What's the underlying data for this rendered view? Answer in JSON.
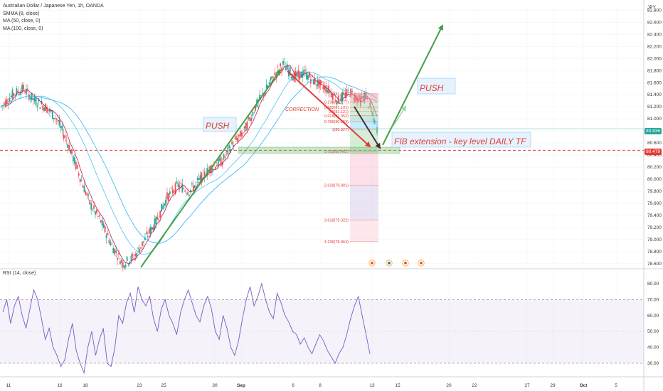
{
  "chart_data": [
    {
      "type": "candlestick",
      "title": "Australian Dollar / Japanese Yen, 1h, OANDA",
      "indicators": [
        "SMMA (8, close)",
        "MA (50, close, 0)",
        "MA (100, close, 0)"
      ],
      "currency": "JPY",
      "y_ticks": [
        "82.800",
        "82.600",
        "82.400",
        "82.200",
        "82.000",
        "81.800",
        "81.600",
        "81.400",
        "81.200",
        "81.000",
        "80.800",
        "80.600",
        "80.400",
        "80.200",
        "80.000",
        "79.800",
        "79.600",
        "79.400",
        "79.200",
        "79.000",
        "78.800",
        "78.600"
      ],
      "x_ticks": [
        "11",
        "16",
        "18",
        "23",
        "25",
        "30",
        "Sep",
        "6",
        "8",
        "13",
        "15",
        "20",
        "22",
        "27",
        "29",
        "Oct",
        "5"
      ],
      "current_price": "80.836",
      "level_price": "80.479",
      "ylim": [
        78.55,
        82.9
      ],
      "price_path": [
        [
          0,
          81.2
        ],
        [
          4,
          81.4
        ],
        [
          8,
          81.5
        ],
        [
          12,
          81.3
        ],
        [
          16,
          81.2
        ],
        [
          20,
          81.0
        ],
        [
          24,
          80.6
        ],
        [
          28,
          80.1
        ],
        [
          32,
          79.6
        ],
        [
          36,
          79.3
        ],
        [
          40,
          78.9
        ],
        [
          44,
          78.6
        ],
        [
          48,
          78.7
        ],
        [
          52,
          79.0
        ],
        [
          56,
          79.3
        ],
        [
          60,
          79.7
        ],
        [
          64,
          79.9
        ],
        [
          68,
          79.8
        ],
        [
          72,
          80.0
        ],
        [
          76,
          80.2
        ],
        [
          80,
          80.3
        ],
        [
          84,
          80.6
        ],
        [
          88,
          80.8
        ],
        [
          92,
          81.2
        ],
        [
          96,
          81.5
        ],
        [
          100,
          81.8
        ],
        [
          102,
          81.9
        ],
        [
          106,
          81.7
        ],
        [
          110,
          81.75
        ],
        [
          114,
          81.6
        ],
        [
          118,
          81.5
        ],
        [
          122,
          81.3
        ],
        [
          126,
          81.45
        ],
        [
          130,
          81.3
        ],
        [
          132,
          81.4
        ],
        [
          134,
          81.1
        ],
        [
          136,
          80.84
        ]
      ],
      "fib_levels": [
        {
          "label": "0(81.416)",
          "value": 81.416
        },
        {
          "label": "0.236(81.277)",
          "value": 81.277
        },
        {
          "label": "0.382(81.191)",
          "value": 81.191
        },
        {
          "label": "0.5(81.121)",
          "value": 81.121
        },
        {
          "label": "0.618(81.052)",
          "value": 81.052
        },
        {
          "label": "0.786(80.953)",
          "value": 80.953
        },
        {
          "label": "1(80.827)",
          "value": 80.827
        },
        {
          "label": "1.618(80.462)",
          "value": 80.462
        },
        {
          "label": "2.618(79.901)",
          "value": 79.901
        },
        {
          "label": "3.618(79.322)",
          "value": 79.322
        },
        {
          "label": "4.236(78.964)",
          "value": 78.964
        }
      ],
      "annotations": [
        "PUSH",
        "PUSH",
        "CORRECTION",
        "FIB extension - key level DAILY TF"
      ]
    },
    {
      "type": "line",
      "title": "RSI (14, close)",
      "y_ticks": [
        "80.00",
        "70.00",
        "60.00",
        "50.00",
        "40.00",
        "30.00"
      ],
      "ylim": [
        26,
        84
      ],
      "bands": [
        30,
        70
      ],
      "values": [
        62,
        70,
        55,
        66,
        72,
        60,
        52,
        64,
        76,
        70,
        58,
        45,
        52,
        40,
        35,
        28,
        32,
        45,
        55,
        38,
        30,
        24,
        40,
        50,
        35,
        45,
        52,
        30,
        28,
        40,
        60,
        55,
        68,
        74,
        62,
        78,
        70,
        66,
        72,
        58,
        50,
        64,
        70,
        60,
        55,
        48,
        62,
        70,
        76,
        68,
        60,
        56,
        66,
        72,
        64,
        50,
        45,
        60,
        52,
        40,
        35,
        44,
        58,
        70,
        78,
        66,
        72,
        80,
        70,
        62,
        58,
        74,
        68,
        60,
        56,
        50,
        48,
        42,
        46,
        40,
        36,
        42,
        48,
        44,
        38,
        34,
        30,
        36,
        40,
        48,
        58,
        66,
        72,
        60,
        48,
        36
      ]
    }
  ],
  "labels": {
    "rsi_legend": "RSI (14, close)",
    "currency": "JPY"
  }
}
